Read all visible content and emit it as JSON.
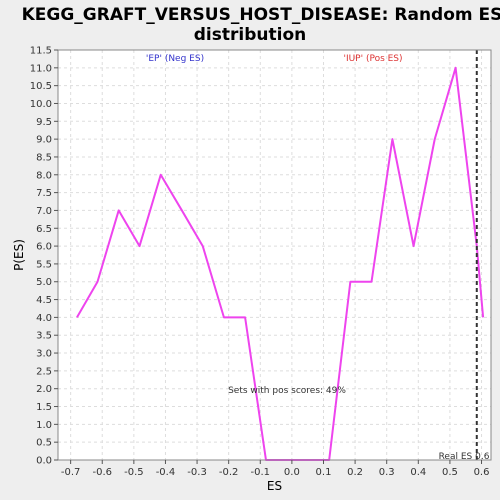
{
  "chart_data": {
    "type": "line",
    "title_lines": [
      "KEGG_GRAFT_VERSUS_HOST_DISEASE: Random ES",
      "distribution"
    ],
    "xlabel": "ES",
    "ylabel": "P(ES)",
    "xlim": [
      -0.74,
      0.63
    ],
    "ylim": [
      0,
      11.5
    ],
    "x_ticks": [
      -0.7,
      -0.6,
      -0.5,
      -0.4,
      -0.3,
      -0.2,
      -0.1,
      0.0,
      0.1,
      0.2,
      0.3,
      0.4,
      0.5,
      0.6
    ],
    "x_tick_labels": [
      "-0.7",
      "-0.6",
      "-0.5",
      "-0.4",
      "-0.3",
      "-0.2",
      "-0.1",
      "0.0",
      "0.1",
      "0.2",
      "0.3",
      "0.4",
      "0.5",
      "0.6"
    ],
    "y_ticks": [
      0,
      0.5,
      1,
      1.5,
      2,
      2.5,
      3,
      3.5,
      4,
      4.5,
      5,
      5.5,
      6,
      6.5,
      7,
      7.5,
      8,
      8.5,
      9,
      9.5,
      10,
      10.5,
      11,
      11.5
    ],
    "y_tick_labels": [
      "0.0",
      "0.5",
      "1.0",
      "1.5",
      "2.0",
      "2.5",
      "3.0",
      "3.5",
      "4.0",
      "4.5",
      "5.0",
      "5.5",
      "6.0",
      "6.5",
      "7.0",
      "7.5",
      "8.0",
      "8.5",
      "9.0",
      "9.5",
      "10.0",
      "10.5",
      "11.0",
      "11.5"
    ],
    "grid": true,
    "series": [
      {
        "color": "#ee44ee",
        "x": [
          -0.68,
          -0.615,
          -0.548,
          -0.482,
          -0.415,
          -0.348,
          -0.282,
          -0.215,
          -0.148,
          -0.082,
          -0.015,
          0.052,
          0.118,
          0.185,
          0.252,
          0.318,
          0.385,
          0.452,
          0.518,
          0.585,
          0.605
        ],
        "y": [
          4.0,
          5.0,
          7.0,
          6.0,
          8.0,
          7.0,
          6.0,
          4.0,
          4.0,
          0.0,
          0.0,
          0.0,
          0.0,
          5.0,
          5.0,
          9.0,
          6.0,
          9.0,
          11.0,
          6.0,
          4.0
        ]
      }
    ],
    "real_es": {
      "x": 0.585,
      "label": "Real ES 0.6",
      "color": "#333333"
    },
    "annotations": {
      "neg": {
        "text": "'EP' (Neg ES)",
        "color": "#3333cc"
      },
      "pos": {
        "text": "'IUP' (Pos ES)",
        "color": "#dd3333"
      },
      "sets": {
        "text": "Sets with pos scores: 49%",
        "color": "#333333"
      }
    }
  }
}
